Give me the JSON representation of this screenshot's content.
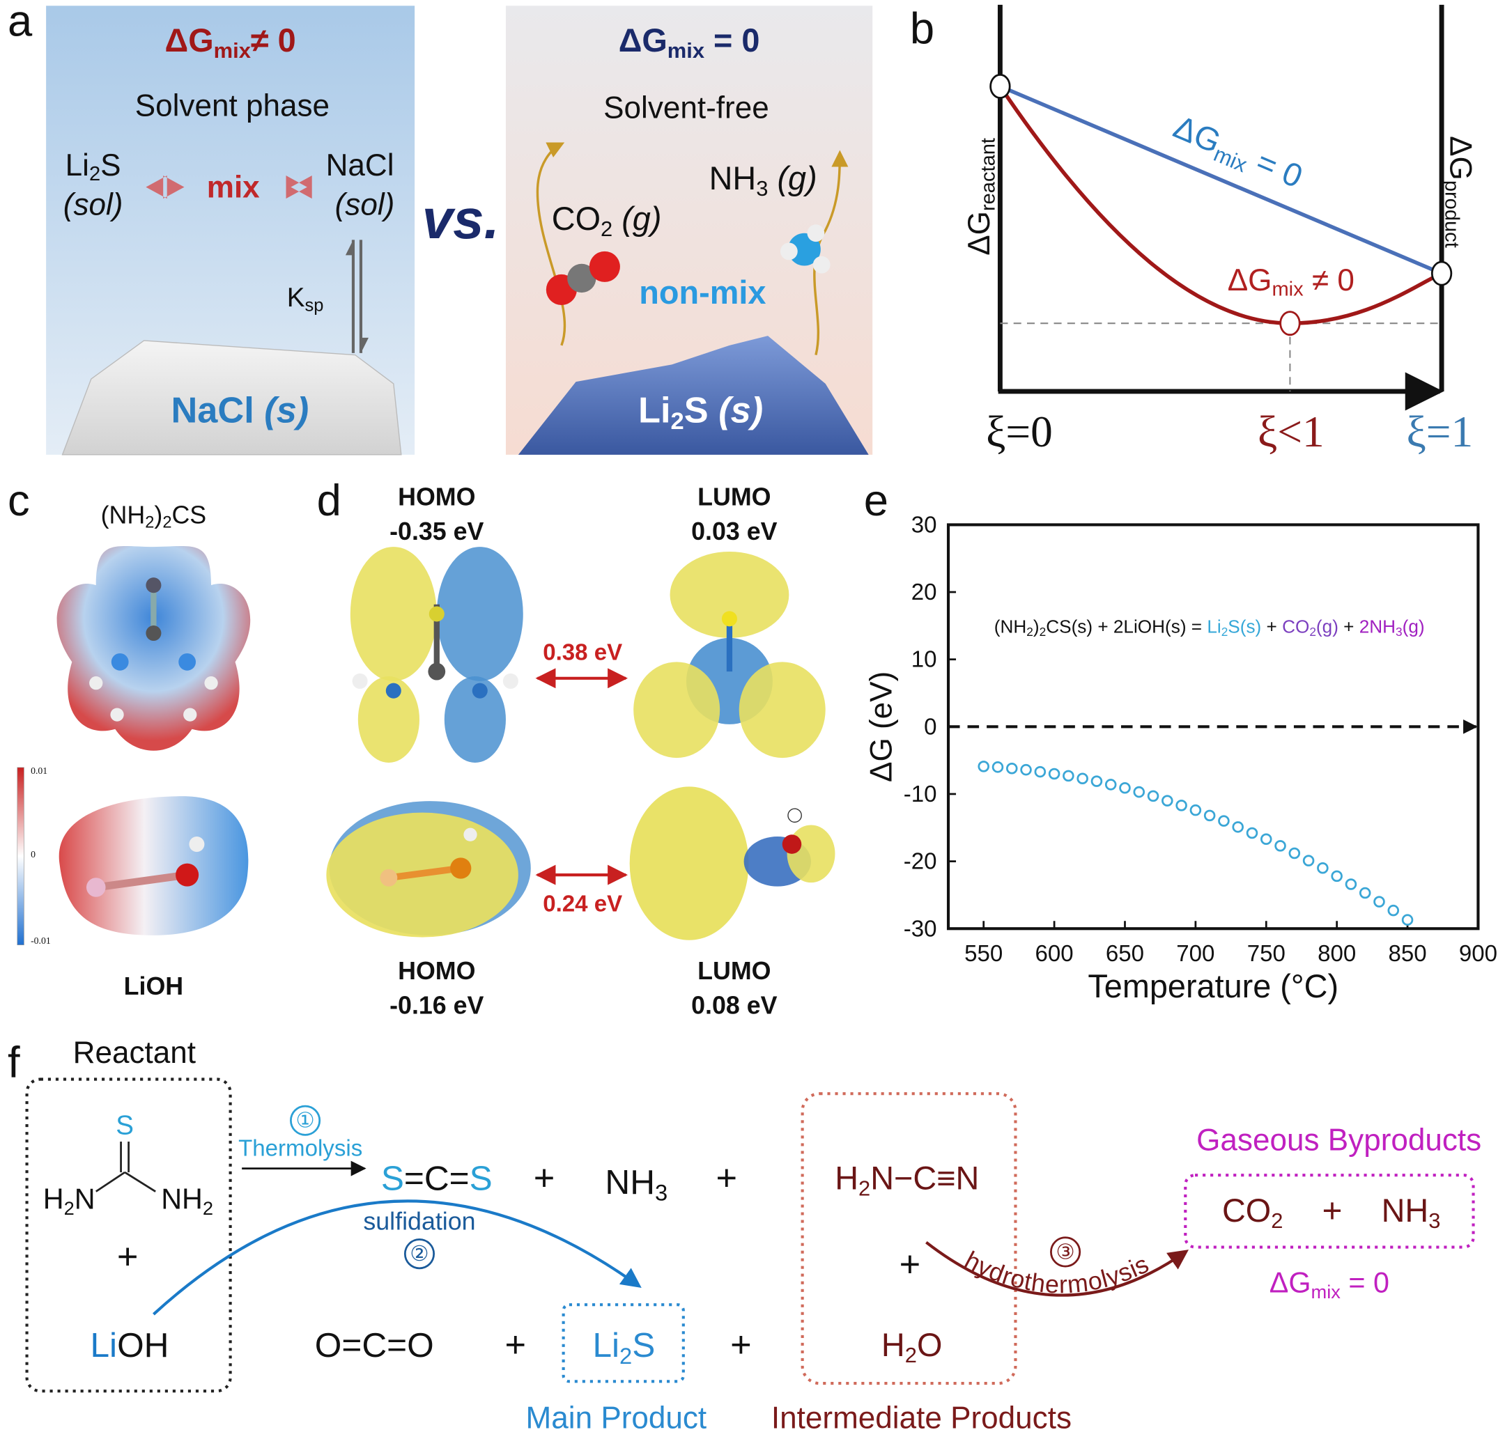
{
  "panel_labels": [
    "a",
    "b",
    "c",
    "d",
    "e",
    "f"
  ],
  "panel_a": {
    "left": {
      "title": [
        "ΔG",
        "mix",
        "≠ 0"
      ],
      "subtitle": "Solvent phase",
      "li2s": [
        "Li",
        "2",
        "S"
      ],
      "sol_left": "(sol)",
      "mix": "mix",
      "nacl": "NaCl",
      "sol_right": "(sol)",
      "ksp": [
        "K",
        "sp"
      ],
      "solid": [
        "NaCl ",
        "(s)"
      ]
    },
    "vs": "vs.",
    "right": {
      "title": [
        "ΔG",
        "mix",
        " = 0"
      ],
      "subtitle": "Solvent-free",
      "co2": [
        "CO",
        "2",
        " (g)"
      ],
      "nh3": [
        "NH",
        "3",
        " (g)"
      ],
      "nonmix": "non-mix",
      "solid": [
        "Li",
        "2",
        "S ",
        "(s)"
      ]
    }
  },
  "panel_b": {
    "reactant": [
      "ΔG",
      "reactant"
    ],
    "product": [
      "ΔG",
      "product"
    ],
    "mix_zero": [
      "ΔG",
      "mix",
      " = 0"
    ],
    "mix_nonzero": [
      "ΔG",
      "mix",
      " ≠ 0"
    ],
    "xi_zero": "ξ=0",
    "xi_less": "ξ<1",
    "xi_one": "ξ=1"
  },
  "panel_c": {
    "thiourea": [
      "(NH",
      "2",
      ")",
      "2",
      "CS"
    ],
    "lioh": "LiOH",
    "colorbar": [
      "0.01",
      "0",
      "-0.01"
    ]
  },
  "panel_d": {
    "top_homo": [
      "HOMO",
      "-0.35 eV"
    ],
    "top_lumo": [
      "LUMO",
      "0.03 eV"
    ],
    "top_gap": "0.38 eV",
    "bottom_gap": "0.24 eV",
    "bottom_homo": [
      "HOMO",
      "-0.16 eV"
    ],
    "bottom_lumo": [
      "LUMO",
      "0.08 eV"
    ]
  },
  "chart_data": {
    "type": "scatter",
    "equation": [
      "(NH",
      "2",
      ")",
      "2",
      "CS(s) + 2LiOH(s) = ",
      "Li",
      "2",
      "S(s)",
      " + ",
      "CO",
      "2",
      "(g)",
      " + ",
      "2NH",
      "3",
      "(g)"
    ],
    "xlabel": "Temperature (°C)",
    "ylabel": "ΔG (eV)",
    "x": [
      550,
      560,
      570,
      580,
      590,
      600,
      610,
      620,
      630,
      640,
      650,
      660,
      670,
      680,
      690,
      700,
      710,
      720,
      730,
      740,
      750,
      760,
      770,
      780,
      790,
      800,
      810,
      820,
      830,
      840,
      850
    ],
    "values": [
      -5.9,
      -6.0,
      -6.2,
      -6.4,
      -6.7,
      -7.0,
      -7.3,
      -7.7,
      -8.1,
      -8.6,
      -9.1,
      -9.7,
      -10.3,
      -11.0,
      -11.7,
      -12.4,
      -13.2,
      -14.0,
      -14.9,
      -15.8,
      -16.7,
      -17.7,
      -18.8,
      -19.9,
      -21.0,
      -22.2,
      -23.4,
      -24.7,
      -26.0,
      -27.3,
      -28.7
    ],
    "color": "#3aa6d6",
    "xlim": [
      525,
      900
    ],
    "ylim": [
      -30,
      30
    ],
    "xticks": [
      550,
      600,
      650,
      700,
      750,
      800,
      850,
      900
    ],
    "yticks": [
      -30,
      -20,
      -10,
      0,
      10,
      20,
      30
    ],
    "hline": 0
  },
  "panel_f": {
    "reactant": "Reactant",
    "thiourea": {
      "s": "S",
      "left": [
        "H",
        "2",
        "N"
      ],
      "right": [
        "NH",
        "2"
      ]
    },
    "plus_signs": [
      "+",
      "+",
      "+",
      "+",
      "+",
      "+",
      "+"
    ],
    "lioh": [
      "Li",
      "OH"
    ],
    "step1": {
      "num": "①",
      "name": "Thermolysis"
    },
    "cs2": [
      "S",
      "=C=",
      "S"
    ],
    "nh3": [
      "NH",
      "3"
    ],
    "cyanamide": [
      "H",
      "2",
      "N−C≡N"
    ],
    "h2o": [
      "H",
      "2",
      "O"
    ],
    "step2": {
      "name": "sulfidation",
      "num": "②"
    },
    "co2": "O=C=O",
    "li2s": [
      "Li",
      "2",
      "S"
    ],
    "step3": {
      "name": "hydrothermolysis",
      "num": "③"
    },
    "gaseous_title": "Gaseous Byproducts",
    "gaseous": [
      "CO",
      "2",
      "NH",
      "3"
    ],
    "dg": [
      "ΔG",
      "mix",
      " = 0"
    ],
    "main_product": "Main Product",
    "intermediate": "Intermediate Products"
  }
}
